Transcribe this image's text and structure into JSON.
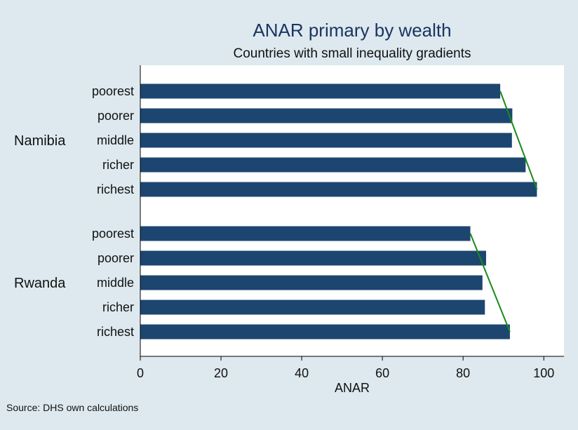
{
  "chart_data": {
    "type": "bar",
    "orientation": "horizontal",
    "title": "ANAR primary by wealth",
    "subtitle": "Countries with small inequality gradients",
    "xlabel": "ANAR",
    "ylabel": "",
    "xlim": [
      0,
      105
    ],
    "xticks": [
      0,
      20,
      40,
      60,
      80,
      100
    ],
    "grid": false,
    "bar_color": "#1c4670",
    "trend_color": "#1a8a1a",
    "groups": [
      {
        "name": "Namibia",
        "categories": [
          "poorest",
          "poorer",
          "middle",
          "richer",
          "richest"
        ],
        "values": [
          89.2,
          92.2,
          92.1,
          95.5,
          98.3
        ],
        "trend": [
          89.2,
          98.3
        ]
      },
      {
        "name": "Rwanda",
        "categories": [
          "poorest",
          "poorer",
          "middle",
          "richer",
          "richest"
        ],
        "values": [
          81.8,
          85.7,
          84.8,
          85.4,
          91.6
        ],
        "trend": [
          81.8,
          91.6
        ]
      }
    ]
  },
  "footer": {
    "source": "Source: DHS own calculations"
  }
}
